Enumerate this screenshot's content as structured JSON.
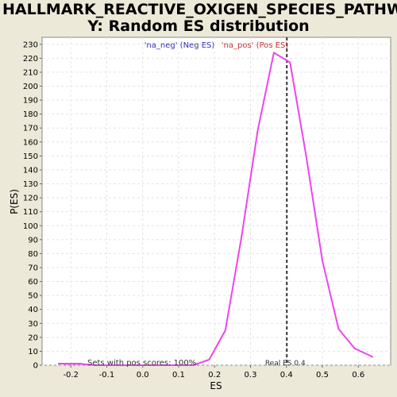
{
  "chart_data": {
    "type": "line",
    "title_line1": "HALLMARK_REACTIVE_OXIGEN_SPECIES_PATHWA",
    "title_line2": "Y: Random ES distribution",
    "xlabel": "ES",
    "ylabel": "P(ES)",
    "xlim": [
      -0.28,
      0.69
    ],
    "ylim": [
      0,
      235
    ],
    "x_ticks": [
      "-0.2",
      "-0.1",
      "0.0",
      "0.1",
      "0.2",
      "0.3",
      "0.4",
      "0.5",
      "0.6"
    ],
    "x_tick_values": [
      -0.2,
      -0.1,
      0.0,
      0.1,
      0.2,
      0.3,
      0.4,
      0.5,
      0.6
    ],
    "y_ticks": [
      "0",
      "10",
      "20",
      "30",
      "40",
      "50",
      "60",
      "70",
      "80",
      "90",
      "100",
      "110",
      "120",
      "130",
      "140",
      "150",
      "160",
      "170",
      "180",
      "190",
      "200",
      "210",
      "220",
      "230"
    ],
    "y_tick_values": [
      0,
      10,
      20,
      30,
      40,
      50,
      60,
      70,
      80,
      90,
      100,
      110,
      120,
      130,
      140,
      150,
      160,
      170,
      180,
      190,
      200,
      210,
      220,
      230
    ],
    "series": [
      {
        "name": "Sets with pos scores: 100%",
        "color": "#ee44ee",
        "x": [
          -0.22,
          -0.175,
          -0.13,
          -0.085,
          -0.04,
          0.005,
          0.05,
          0.095,
          0.14,
          0.185,
          0.23,
          0.275,
          0.32,
          0.365,
          0.41,
          0.455,
          0.5,
          0.545,
          0.59,
          0.64
        ],
        "y": [
          1,
          1,
          0,
          0,
          0,
          0,
          0,
          0,
          0,
          4,
          25,
          92,
          168,
          224,
          217,
          150,
          75,
          26,
          12,
          6
        ]
      }
    ],
    "real_es": 0.4,
    "real_es_label": "Real ES 0.4",
    "legend_neg": "'na_neg' (Neg ES)",
    "legend_pos": "'na_pos' (Pos ES)",
    "legend_neg_color": "#3333bb",
    "legend_pos_color": "#cc3333",
    "series_label": "Sets with pos scores: 100%",
    "grid": true
  }
}
